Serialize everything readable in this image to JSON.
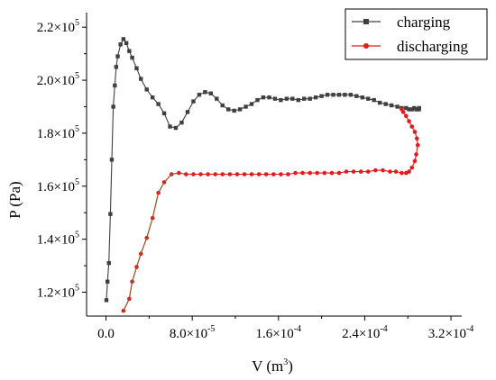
{
  "chart_data": {
    "type": "line",
    "title": "",
    "xlabel": "V (m",
    "xlabel_sup": "3",
    "xlabel_close": ")",
    "ylabel": "P (Pa)",
    "xlim": [
      -1.8e-05,
      0.00033
    ],
    "ylim": [
      111000,
      225500
    ],
    "grid": false,
    "legend_position": "top-right",
    "x_ticks": [
      {
        "value": 0.0,
        "mant": "0.0",
        "exp": ""
      },
      {
        "value": 8e-05,
        "mant": "8.0×10",
        "exp": "-5"
      },
      {
        "value": 0.00016,
        "mant": "1.6×10",
        "exp": "-4"
      },
      {
        "value": 0.00024,
        "mant": "2.4×10",
        "exp": "-4"
      },
      {
        "value": 0.00032,
        "mant": "3.2×10",
        "exp": "-4"
      }
    ],
    "y_ticks": [
      {
        "value": 120000,
        "mant": "1.2×10",
        "exp": "5"
      },
      {
        "value": 140000,
        "mant": "1.4×10",
        "exp": "5"
      },
      {
        "value": 160000,
        "mant": "1.6×10",
        "exp": "5"
      },
      {
        "value": 180000,
        "mant": "1.8×10",
        "exp": "5"
      },
      {
        "value": 200000,
        "mant": "2.0×10",
        "exp": "5"
      },
      {
        "value": 220000,
        "mant": "2.2×10",
        "exp": "5"
      }
    ],
    "series": [
      {
        "name": "charging",
        "color": "#404040",
        "marker": "square",
        "x": [
          4e-07,
          1.4e-06,
          2.7e-06,
          4.1e-06,
          5.4e-06,
          6.8e-06,
          8.2e-06,
          9.5e-06,
          1.09e-05,
          1.35e-05,
          1.62e-05,
          1.89e-05,
          2.16e-05,
          2.43e-05,
          2.84e-05,
          3.24e-05,
          3.78e-05,
          4.32e-05,
          4.86e-05,
          5.4e-05,
          5.94e-05,
          6.48e-05,
          7.02e-05,
          7.57e-05,
          8.11e-05,
          8.65e-05,
          9.19e-05,
          9.73e-05,
          0.0001027,
          0.0001081,
          0.0001135,
          0.0001189,
          0.0001243,
          0.0001297,
          0.0001351,
          0.0001405,
          0.0001459,
          0.0001514,
          0.0001568,
          0.0001622,
          0.0001676,
          0.000173,
          0.0001784,
          0.0001838,
          0.0001892,
          0.0001946,
          0.0002,
          0.0002054,
          0.0002108,
          0.0002162,
          0.0002216,
          0.000227,
          0.0002324,
          0.0002378,
          0.0002432,
          0.0002486,
          0.000254,
          0.0002595,
          0.0002649,
          0.0002703,
          0.0002743,
          0.0002784,
          0.0002811,
          0.0002838,
          0.0002859,
          0.0002878,
          0.0002892,
          0.0002903,
          0.0002905
        ],
        "y": [
          117000,
          124000,
          131000,
          149500,
          170000,
          190000,
          198000,
          205000,
          209000,
          213500,
          215500,
          214000,
          211000,
          208500,
          204500,
          200500,
          196500,
          193500,
          191000,
          187500,
          182500,
          182000,
          184000,
          188000,
          192000,
          194500,
          195500,
          195000,
          193000,
          190500,
          189000,
          188500,
          189000,
          190000,
          191000,
          192500,
          193500,
          193500,
          193000,
          192500,
          193000,
          193000,
          192500,
          193000,
          193000,
          193500,
          194000,
          194500,
          194500,
          194500,
          194500,
          194500,
          194000,
          193500,
          193000,
          192500,
          191500,
          191000,
          190500,
          190000,
          189500,
          189500,
          189000,
          189000,
          189500,
          189000,
          189000,
          189000,
          189500
        ]
      },
      {
        "name": "discharging",
        "color": "#e41a1c",
        "marker": "circle",
        "x": [
          1.62e-05,
          2.16e-05,
          2.43e-05,
          2.84e-05,
          3.24e-05,
          3.78e-05,
          4.32e-05,
          4.86e-05,
          5.4e-05,
          6.08e-05,
          6.76e-05,
          7.43e-05,
          8.11e-05,
          8.78e-05,
          9.46e-05,
          0.0001014,
          0.0001081,
          0.0001149,
          0.0001216,
          0.0001284,
          0.0001351,
          0.0001419,
          0.0001486,
          0.0001554,
          0.0001622,
          0.0001689,
          0.0001757,
          0.0001824,
          0.0001892,
          0.0001959,
          0.0002027,
          0.0002095,
          0.0002162,
          0.000223,
          0.0002297,
          0.0002365,
          0.0002432,
          0.00025,
          0.0002568,
          0.0002635,
          0.0002689,
          0.0002743,
          0.0002784,
          0.0002811,
          0.0002838,
          0.0002865,
          0.0002878,
          0.0002892,
          0.0002884,
          0.0002865,
          0.0002838,
          0.0002811,
          0.0002784,
          0.0002757,
          0.0002743
        ],
        "y": [
          113000,
          117500,
          124000,
          129500,
          134500,
          140500,
          148000,
          157500,
          161500,
          164500,
          165000,
          164500,
          164500,
          164500,
          164500,
          164500,
          164500,
          164500,
          164500,
          164500,
          164500,
          164500,
          164500,
          164500,
          164500,
          164500,
          165000,
          165000,
          165000,
          165000,
          165000,
          165000,
          165000,
          165500,
          165500,
          165500,
          165500,
          166000,
          166000,
          165500,
          165500,
          165000,
          165000,
          165500,
          167000,
          169500,
          172000,
          175500,
          178000,
          180500,
          182500,
          184500,
          186500,
          188000,
          189000
        ]
      },
      {
        "name": "",
        "color": "#8b5a2b",
        "marker": "none",
        "x": [
          1.62e-05,
          2.16e-05,
          2.43e-05,
          2.84e-05,
          3.24e-05,
          3.78e-05,
          4.32e-05,
          4.86e-05,
          5.4e-05,
          6.08e-05,
          6.76e-05
        ],
        "y": [
          113000,
          117500,
          124000,
          129500,
          134500,
          140500,
          148000,
          157500,
          161500,
          164500,
          165000
        ]
      }
    ]
  }
}
